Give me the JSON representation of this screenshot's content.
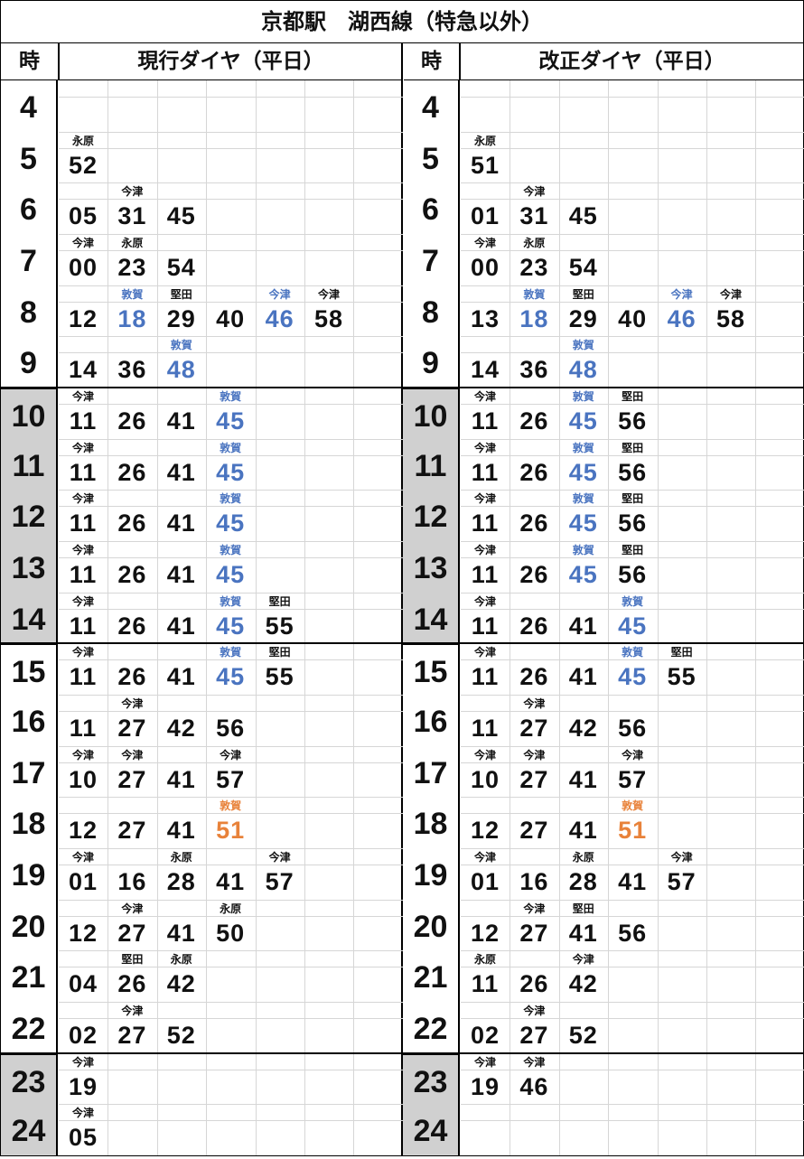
{
  "title": "京都駅　湖西線（特急以外）",
  "colors": {
    "blue": "#4a74c0",
    "orange": "#e8823a",
    "black": "#111111",
    "shade": "#d0d0d0"
  },
  "shaded_hours": [
    10,
    11,
    12,
    13,
    14,
    23,
    24
  ],
  "panels": [
    {
      "hour_header": "時",
      "header": "現行ダイヤ（平日）",
      "rows": [
        {
          "hour": "4",
          "trains": []
        },
        {
          "hour": "5",
          "trains": [
            {
              "dest": "永原",
              "min": "52"
            }
          ]
        },
        {
          "hour": "6",
          "trains": [
            {
              "min": "05"
            },
            {
              "dest": "今津",
              "min": "31"
            },
            {
              "min": "45"
            }
          ]
        },
        {
          "hour": "7",
          "trains": [
            {
              "dest": "今津",
              "min": "00"
            },
            {
              "dest": "永原",
              "min": "23"
            },
            {
              "min": "54"
            }
          ]
        },
        {
          "hour": "8",
          "trains": [
            {
              "min": "12"
            },
            {
              "dest": "敦賀",
              "min": "18",
              "color": "blue"
            },
            {
              "dest": "堅田",
              "min": "29"
            },
            {
              "min": "40"
            },
            {
              "dest": "今津",
              "min": "46",
              "color": "blue"
            },
            {
              "dest": "今津",
              "min": "58"
            }
          ]
        },
        {
          "hour": "9",
          "trains": [
            {
              "min": "14"
            },
            {
              "min": "36"
            },
            {
              "dest": "敦賀",
              "min": "48",
              "color": "blue"
            }
          ]
        },
        {
          "hour": "10",
          "trains": [
            {
              "dest": "今津",
              "min": "11"
            },
            {
              "min": "26"
            },
            {
              "min": "41"
            },
            {
              "dest": "敦賀",
              "min": "45",
              "color": "blue"
            }
          ]
        },
        {
          "hour": "11",
          "trains": [
            {
              "dest": "今津",
              "min": "11"
            },
            {
              "min": "26"
            },
            {
              "min": "41"
            },
            {
              "dest": "敦賀",
              "min": "45",
              "color": "blue"
            }
          ]
        },
        {
          "hour": "12",
          "trains": [
            {
              "dest": "今津",
              "min": "11"
            },
            {
              "min": "26"
            },
            {
              "min": "41"
            },
            {
              "dest": "敦賀",
              "min": "45",
              "color": "blue"
            }
          ]
        },
        {
          "hour": "13",
          "trains": [
            {
              "dest": "今津",
              "min": "11"
            },
            {
              "min": "26"
            },
            {
              "min": "41"
            },
            {
              "dest": "敦賀",
              "min": "45",
              "color": "blue"
            }
          ]
        },
        {
          "hour": "14",
          "trains": [
            {
              "dest": "今津",
              "min": "11"
            },
            {
              "min": "26"
            },
            {
              "min": "41"
            },
            {
              "dest": "敦賀",
              "min": "45",
              "color": "blue"
            },
            {
              "dest": "堅田",
              "min": "55"
            }
          ]
        },
        {
          "hour": "15",
          "trains": [
            {
              "dest": "今津",
              "min": "11"
            },
            {
              "min": "26"
            },
            {
              "min": "41"
            },
            {
              "dest": "敦賀",
              "min": "45",
              "color": "blue"
            },
            {
              "dest": "堅田",
              "min": "55"
            }
          ]
        },
        {
          "hour": "16",
          "trains": [
            {
              "min": "11"
            },
            {
              "dest": "今津",
              "min": "27"
            },
            {
              "min": "42"
            },
            {
              "min": "56"
            }
          ]
        },
        {
          "hour": "17",
          "trains": [
            {
              "dest": "今津",
              "min": "10"
            },
            {
              "dest": "今津",
              "min": "27"
            },
            {
              "min": "41"
            },
            {
              "dest": "今津",
              "min": "57"
            }
          ]
        },
        {
          "hour": "18",
          "trains": [
            {
              "min": "12"
            },
            {
              "min": "27"
            },
            {
              "min": "41"
            },
            {
              "dest": "敦賀",
              "min": "51",
              "color": "orange"
            }
          ]
        },
        {
          "hour": "19",
          "trains": [
            {
              "dest": "今津",
              "min": "01"
            },
            {
              "min": "16"
            },
            {
              "dest": "永原",
              "min": "28"
            },
            {
              "min": "41"
            },
            {
              "dest": "今津",
              "min": "57"
            }
          ]
        },
        {
          "hour": "20",
          "trains": [
            {
              "min": "12"
            },
            {
              "dest": "今津",
              "min": "27"
            },
            {
              "min": "41"
            },
            {
              "dest": "永原",
              "min": "50"
            }
          ]
        },
        {
          "hour": "21",
          "trains": [
            {
              "min": "04"
            },
            {
              "dest": "堅田",
              "min": "26"
            },
            {
              "dest": "永原",
              "min": "42"
            }
          ]
        },
        {
          "hour": "22",
          "trains": [
            {
              "min": "02"
            },
            {
              "dest": "今津",
              "min": "27"
            },
            {
              "min": "52"
            }
          ]
        },
        {
          "hour": "23",
          "trains": [
            {
              "dest": "今津",
              "min": "19"
            }
          ]
        },
        {
          "hour": "24",
          "trains": [
            {
              "dest": "今津",
              "min": "05"
            }
          ]
        }
      ]
    },
    {
      "hour_header": "時",
      "header": "改正ダイヤ（平日）",
      "rows": [
        {
          "hour": "4",
          "trains": []
        },
        {
          "hour": "5",
          "trains": [
            {
              "dest": "永原",
              "min": "51"
            }
          ]
        },
        {
          "hour": "6",
          "trains": [
            {
              "min": "01"
            },
            {
              "dest": "今津",
              "min": "31"
            },
            {
              "min": "45"
            }
          ]
        },
        {
          "hour": "7",
          "trains": [
            {
              "dest": "今津",
              "min": "00"
            },
            {
              "dest": "永原",
              "min": "23"
            },
            {
              "min": "54"
            }
          ]
        },
        {
          "hour": "8",
          "trains": [
            {
              "min": "13"
            },
            {
              "dest": "敦賀",
              "min": "18",
              "color": "blue"
            },
            {
              "dest": "堅田",
              "min": "29"
            },
            {
              "min": "40"
            },
            {
              "dest": "今津",
              "min": "46",
              "color": "blue"
            },
            {
              "dest": "今津",
              "min": "58"
            }
          ]
        },
        {
          "hour": "9",
          "trains": [
            {
              "min": "14"
            },
            {
              "min": "36"
            },
            {
              "dest": "敦賀",
              "min": "48",
              "color": "blue"
            }
          ]
        },
        {
          "hour": "10",
          "trains": [
            {
              "dest": "今津",
              "min": "11"
            },
            {
              "min": "26"
            },
            {
              "dest": "敦賀",
              "min": "45",
              "color": "blue"
            },
            {
              "dest": "堅田",
              "min": "56"
            }
          ]
        },
        {
          "hour": "11",
          "trains": [
            {
              "dest": "今津",
              "min": "11"
            },
            {
              "min": "26"
            },
            {
              "dest": "敦賀",
              "min": "45",
              "color": "blue"
            },
            {
              "dest": "堅田",
              "min": "56"
            }
          ]
        },
        {
          "hour": "12",
          "trains": [
            {
              "dest": "今津",
              "min": "11"
            },
            {
              "min": "26"
            },
            {
              "dest": "敦賀",
              "min": "45",
              "color": "blue"
            },
            {
              "dest": "堅田",
              "min": "56"
            }
          ]
        },
        {
          "hour": "13",
          "trains": [
            {
              "dest": "今津",
              "min": "11"
            },
            {
              "min": "26"
            },
            {
              "dest": "敦賀",
              "min": "45",
              "color": "blue"
            },
            {
              "dest": "堅田",
              "min": "56"
            }
          ]
        },
        {
          "hour": "14",
          "trains": [
            {
              "dest": "今津",
              "min": "11"
            },
            {
              "min": "26"
            },
            {
              "min": "41"
            },
            {
              "dest": "敦賀",
              "min": "45",
              "color": "blue"
            }
          ]
        },
        {
          "hour": "15",
          "trains": [
            {
              "dest": "今津",
              "min": "11"
            },
            {
              "min": "26"
            },
            {
              "min": "41"
            },
            {
              "dest": "敦賀",
              "min": "45",
              "color": "blue"
            },
            {
              "dest": "堅田",
              "min": "55"
            }
          ]
        },
        {
          "hour": "16",
          "trains": [
            {
              "min": "11"
            },
            {
              "dest": "今津",
              "min": "27"
            },
            {
              "min": "42"
            },
            {
              "min": "56"
            }
          ]
        },
        {
          "hour": "17",
          "trains": [
            {
              "dest": "今津",
              "min": "10"
            },
            {
              "dest": "今津",
              "min": "27"
            },
            {
              "min": "41"
            },
            {
              "dest": "今津",
              "min": "57"
            }
          ]
        },
        {
          "hour": "18",
          "trains": [
            {
              "min": "12"
            },
            {
              "min": "27"
            },
            {
              "min": "41"
            },
            {
              "dest": "敦賀",
              "min": "51",
              "color": "orange"
            }
          ]
        },
        {
          "hour": "19",
          "trains": [
            {
              "dest": "今津",
              "min": "01"
            },
            {
              "min": "16"
            },
            {
              "dest": "永原",
              "min": "28"
            },
            {
              "min": "41"
            },
            {
              "dest": "今津",
              "min": "57"
            }
          ]
        },
        {
          "hour": "20",
          "trains": [
            {
              "min": "12"
            },
            {
              "dest": "今津",
              "min": "27"
            },
            {
              "dest": "堅田",
              "min": "41"
            },
            {
              "min": "56"
            }
          ]
        },
        {
          "hour": "21",
          "trains": [
            {
              "dest": "永原",
              "min": "11"
            },
            {
              "min": "26"
            },
            {
              "dest": "今津",
              "min": "42"
            }
          ]
        },
        {
          "hour": "22",
          "trains": [
            {
              "min": "02"
            },
            {
              "dest": "今津",
              "min": "27"
            },
            {
              "min": "52"
            }
          ]
        },
        {
          "hour": "23",
          "trains": [
            {
              "dest": "今津",
              "min": "19"
            },
            {
              "dest": "今津",
              "min": "46"
            }
          ]
        },
        {
          "hour": "24",
          "trains": []
        }
      ]
    }
  ]
}
